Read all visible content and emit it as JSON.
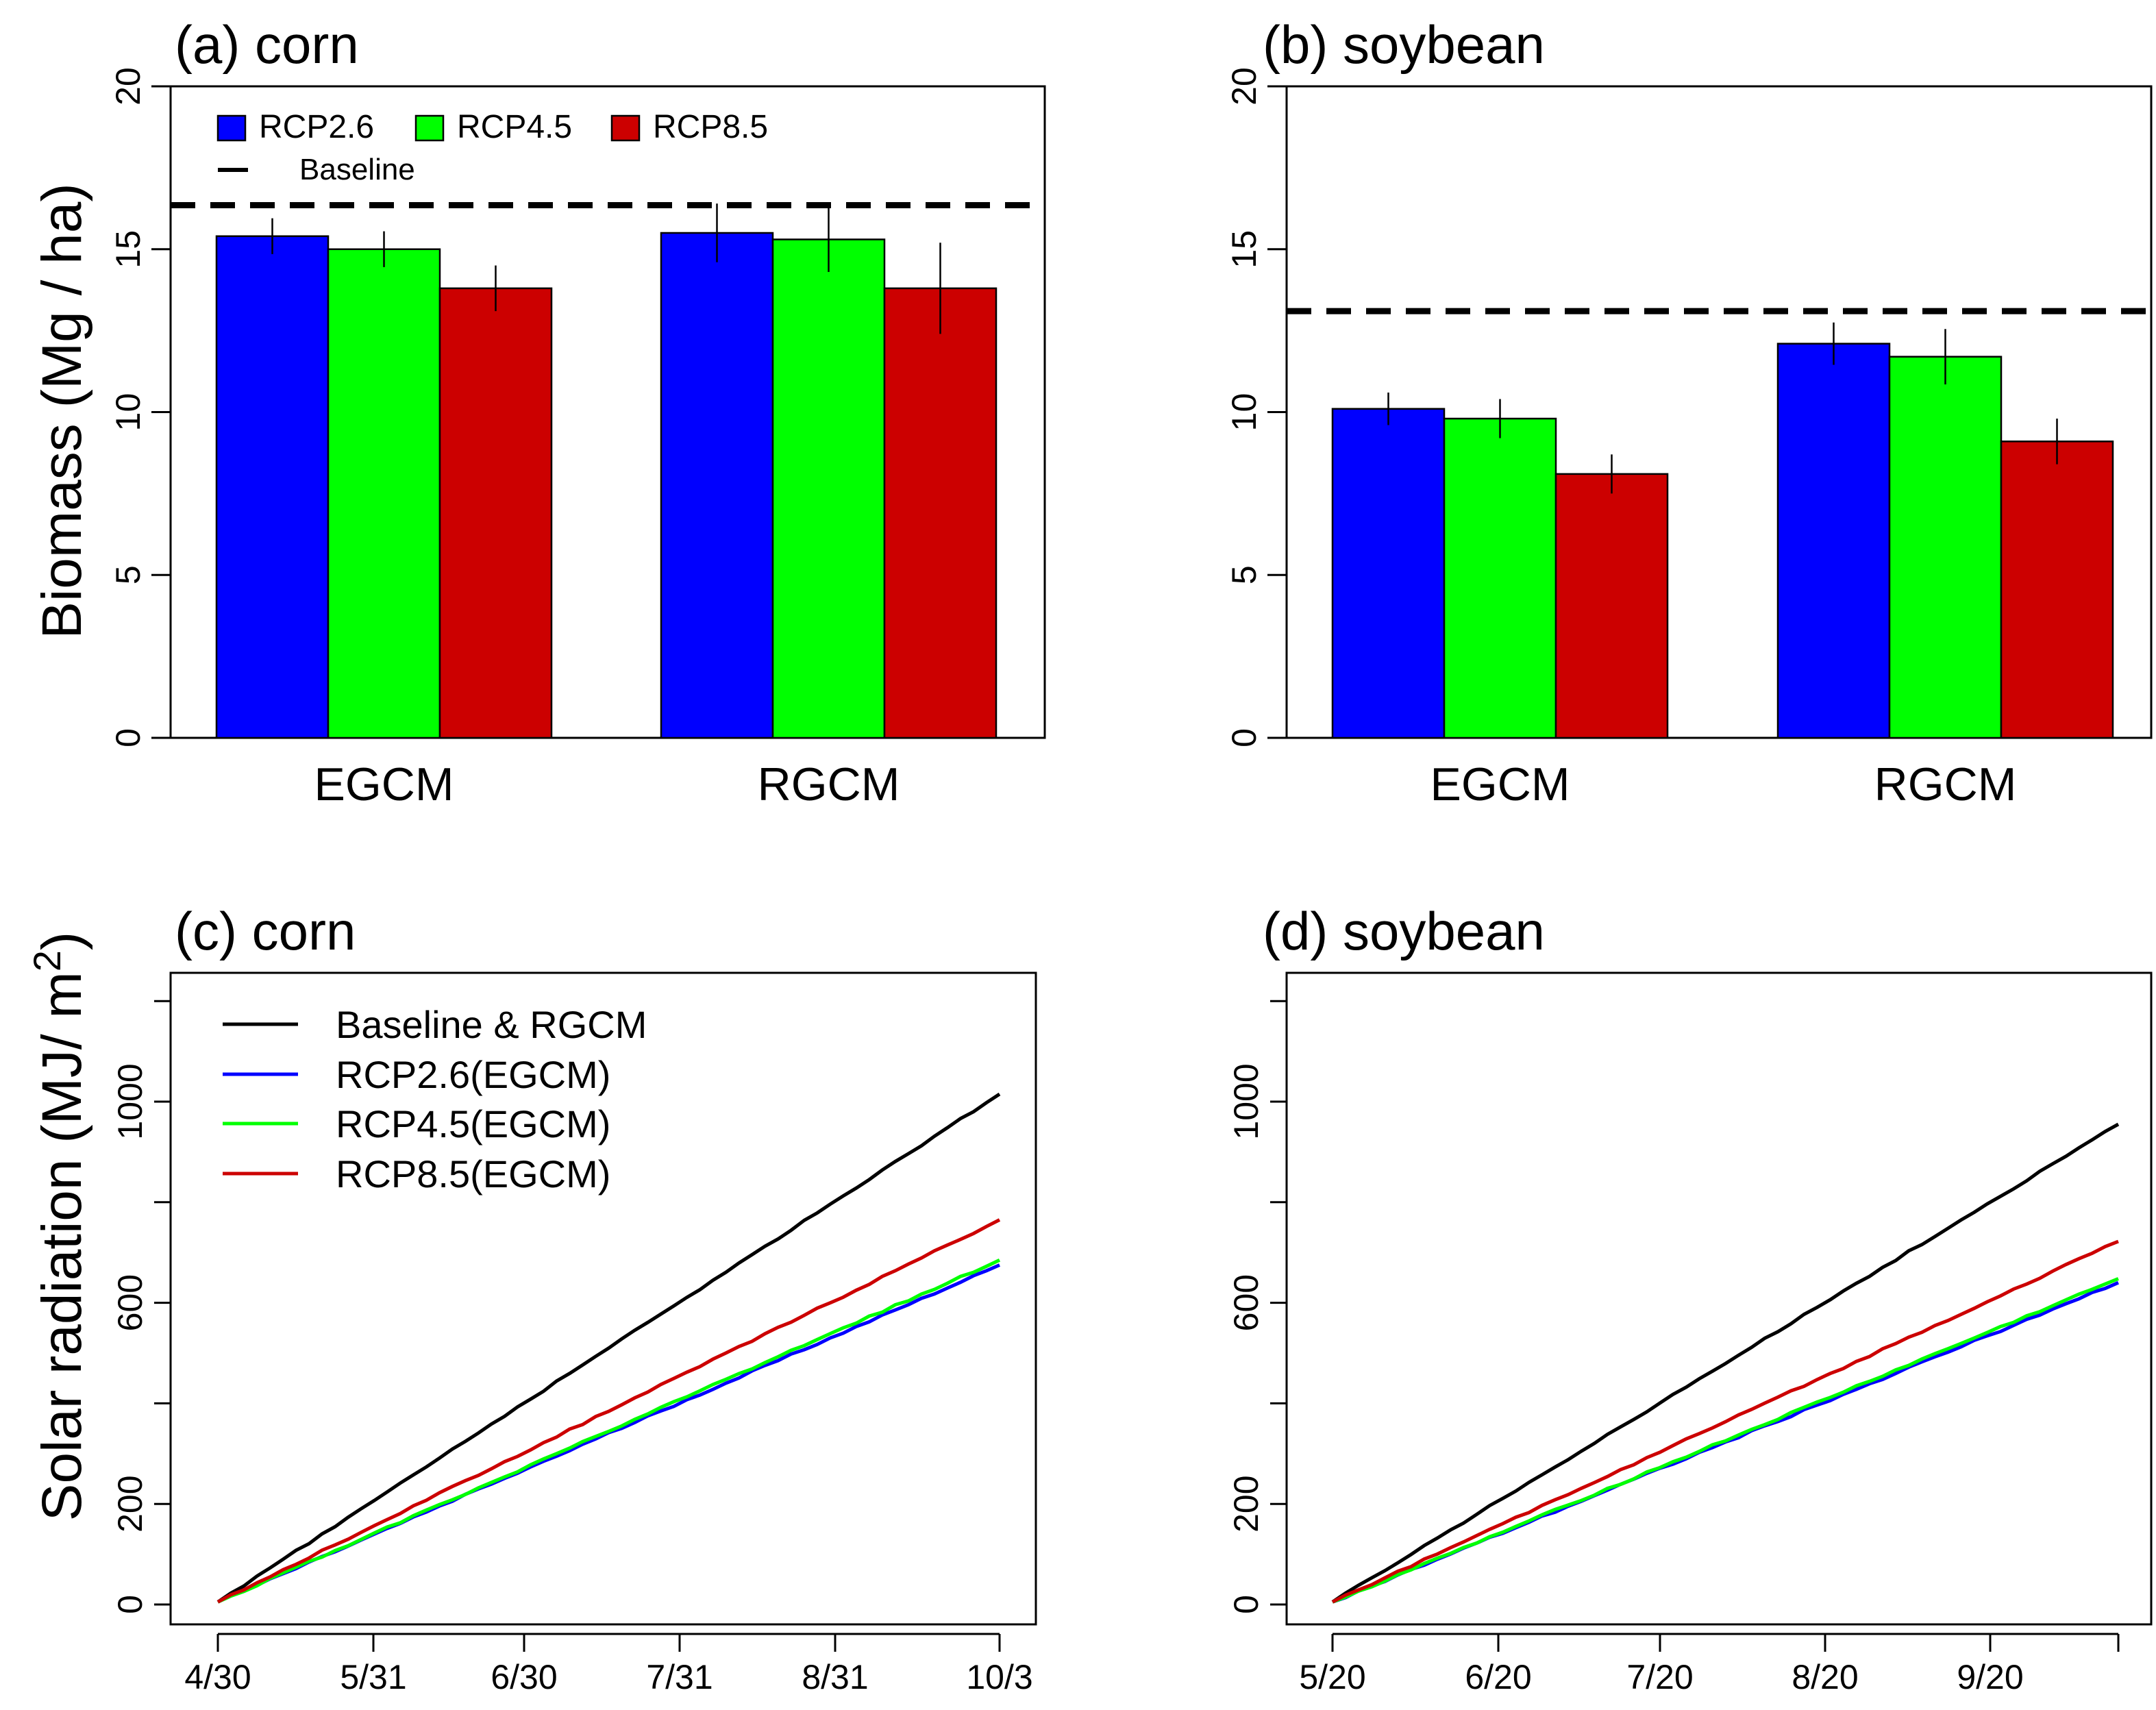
{
  "chart_data": [
    {
      "id": "a",
      "type": "bar",
      "title": "(a) corn",
      "ylabel": "Biomass (Mg / ha)",
      "xlabel": "",
      "ylim": [
        0,
        20
      ],
      "yticks": [
        "0",
        "5",
        "10",
        "15",
        "20"
      ],
      "categories": [
        "EGCM",
        "RGCM"
      ],
      "series": [
        {
          "name": "RCP2.6",
          "color": "#0000ff",
          "values": [
            15.4,
            15.5
          ],
          "errors": [
            0.55,
            0.9
          ]
        },
        {
          "name": "RCP4.5",
          "color": "#00ff00",
          "values": [
            15.0,
            15.3
          ],
          "errors": [
            0.55,
            1.0
          ]
        },
        {
          "name": "RCP8.5",
          "color": "#cc0000",
          "values": [
            13.8,
            13.8
          ],
          "errors": [
            0.7,
            1.4
          ]
        }
      ],
      "baseline": 16.35,
      "legend": {
        "entries": [
          "RCP2.6",
          "RCP4.5",
          "RCP8.5"
        ],
        "baseline_label": "Baseline",
        "position": "top-left"
      }
    },
    {
      "id": "b",
      "type": "bar",
      "title": "(b) soybean",
      "ylabel": "",
      "xlabel": "",
      "ylim": [
        0,
        20
      ],
      "yticks": [
        "0",
        "5",
        "10",
        "15",
        "20"
      ],
      "categories": [
        "EGCM",
        "RGCM"
      ],
      "series": [
        {
          "name": "RCP2.6",
          "color": "#0000ff",
          "values": [
            10.1,
            12.1
          ],
          "errors": [
            0.5,
            0.65
          ]
        },
        {
          "name": "RCP4.5",
          "color": "#00ff00",
          "values": [
            9.8,
            11.7
          ],
          "errors": [
            0.6,
            0.85
          ]
        },
        {
          "name": "RCP8.5",
          "color": "#cc0000",
          "values": [
            8.1,
            9.1
          ],
          "errors": [
            0.6,
            0.7
          ]
        }
      ],
      "baseline": 13.1
    },
    {
      "id": "c",
      "type": "line",
      "title": "(c) corn",
      "ylabel": "Solar radiation (MJ/ m2)",
      "xlabel": "",
      "ylim": [
        -30,
        1210
      ],
      "yticks": [
        0,
        200,
        600,
        1000
      ],
      "xticks": [
        "4/30",
        "5/31",
        "6/30",
        "7/31",
        "8/31",
        "10/3"
      ],
      "series": [
        {
          "name": "Baseline & RGCM",
          "color": "#000000",
          "start": 5,
          "end": 1015
        },
        {
          "name": "RCP2.6(EGCM)",
          "color": "#0000ff",
          "start": 5,
          "end": 675
        },
        {
          "name": "RCP4.5(EGCM)",
          "color": "#00ff00",
          "start": 5,
          "end": 685
        },
        {
          "name": "RCP8.5(EGCM)",
          "color": "#cc0000",
          "start": 5,
          "end": 765
        }
      ],
      "legend_position": "top-left"
    },
    {
      "id": "d",
      "type": "line",
      "title": "(d) soybean",
      "ylabel": "",
      "xlabel": "",
      "ylim": [
        -30,
        1210
      ],
      "yticks": [
        0,
        200,
        600,
        1000
      ],
      "xticks": [
        "5/20",
        "6/20",
        "7/20",
        "8/20",
        "9/20",
        ""
      ],
      "series": [
        {
          "name": "Baseline & RGCM",
          "color": "#000000",
          "start": 5,
          "end": 955
        },
        {
          "name": "RCP2.6(EGCM)",
          "color": "#0000ff",
          "start": 5,
          "end": 640
        },
        {
          "name": "RCP4.5(EGCM)",
          "color": "#00ff00",
          "start": 5,
          "end": 648
        },
        {
          "name": "RCP8.5(EGCM)",
          "color": "#cc0000",
          "start": 5,
          "end": 722
        }
      ]
    }
  ],
  "colors": {
    "rcp26": "#0000ff",
    "rcp45": "#00ff00",
    "rcp85": "#cc0000",
    "baseline": "#000000"
  }
}
